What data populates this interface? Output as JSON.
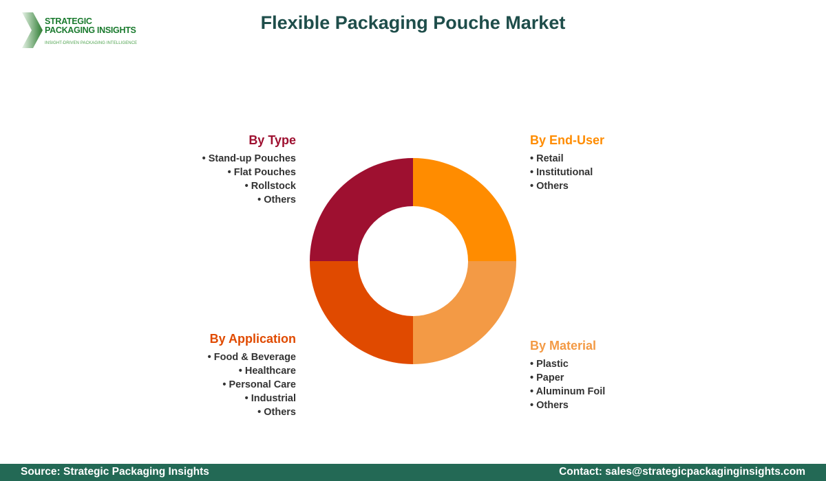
{
  "logo": {
    "line1": "STRATEGIC",
    "line2": "PACKAGING INSIGHTS",
    "tagline": "INSIGHT-DRIVEN PACKAGING INTELLIGENCE"
  },
  "title": "Flexible Packaging Pouche Market",
  "segments": [
    {
      "title": "By Type",
      "color": "#9e1030",
      "items": [
        "Stand-up Pouches",
        "Flat Pouches",
        "Rollstock",
        "Others"
      ]
    },
    {
      "title": "By End-User",
      "color": "#ff8c00",
      "items": [
        "Retail",
        "Institutional",
        "Others"
      ]
    },
    {
      "title": "By Material",
      "color": "#f39a45",
      "items": [
        "Plastic",
        "Paper",
        "Aluminum Foil",
        "Others"
      ]
    },
    {
      "title": "By Application",
      "color": "#e04a00",
      "items": [
        "Food & Beverage",
        "Healthcare",
        "Personal Care",
        "Industrial",
        "Others"
      ]
    }
  ],
  "footer": {
    "source": "Source: Strategic Packaging Insights",
    "contact": "Contact: sales@strategicpackaginginsights.com"
  }
}
